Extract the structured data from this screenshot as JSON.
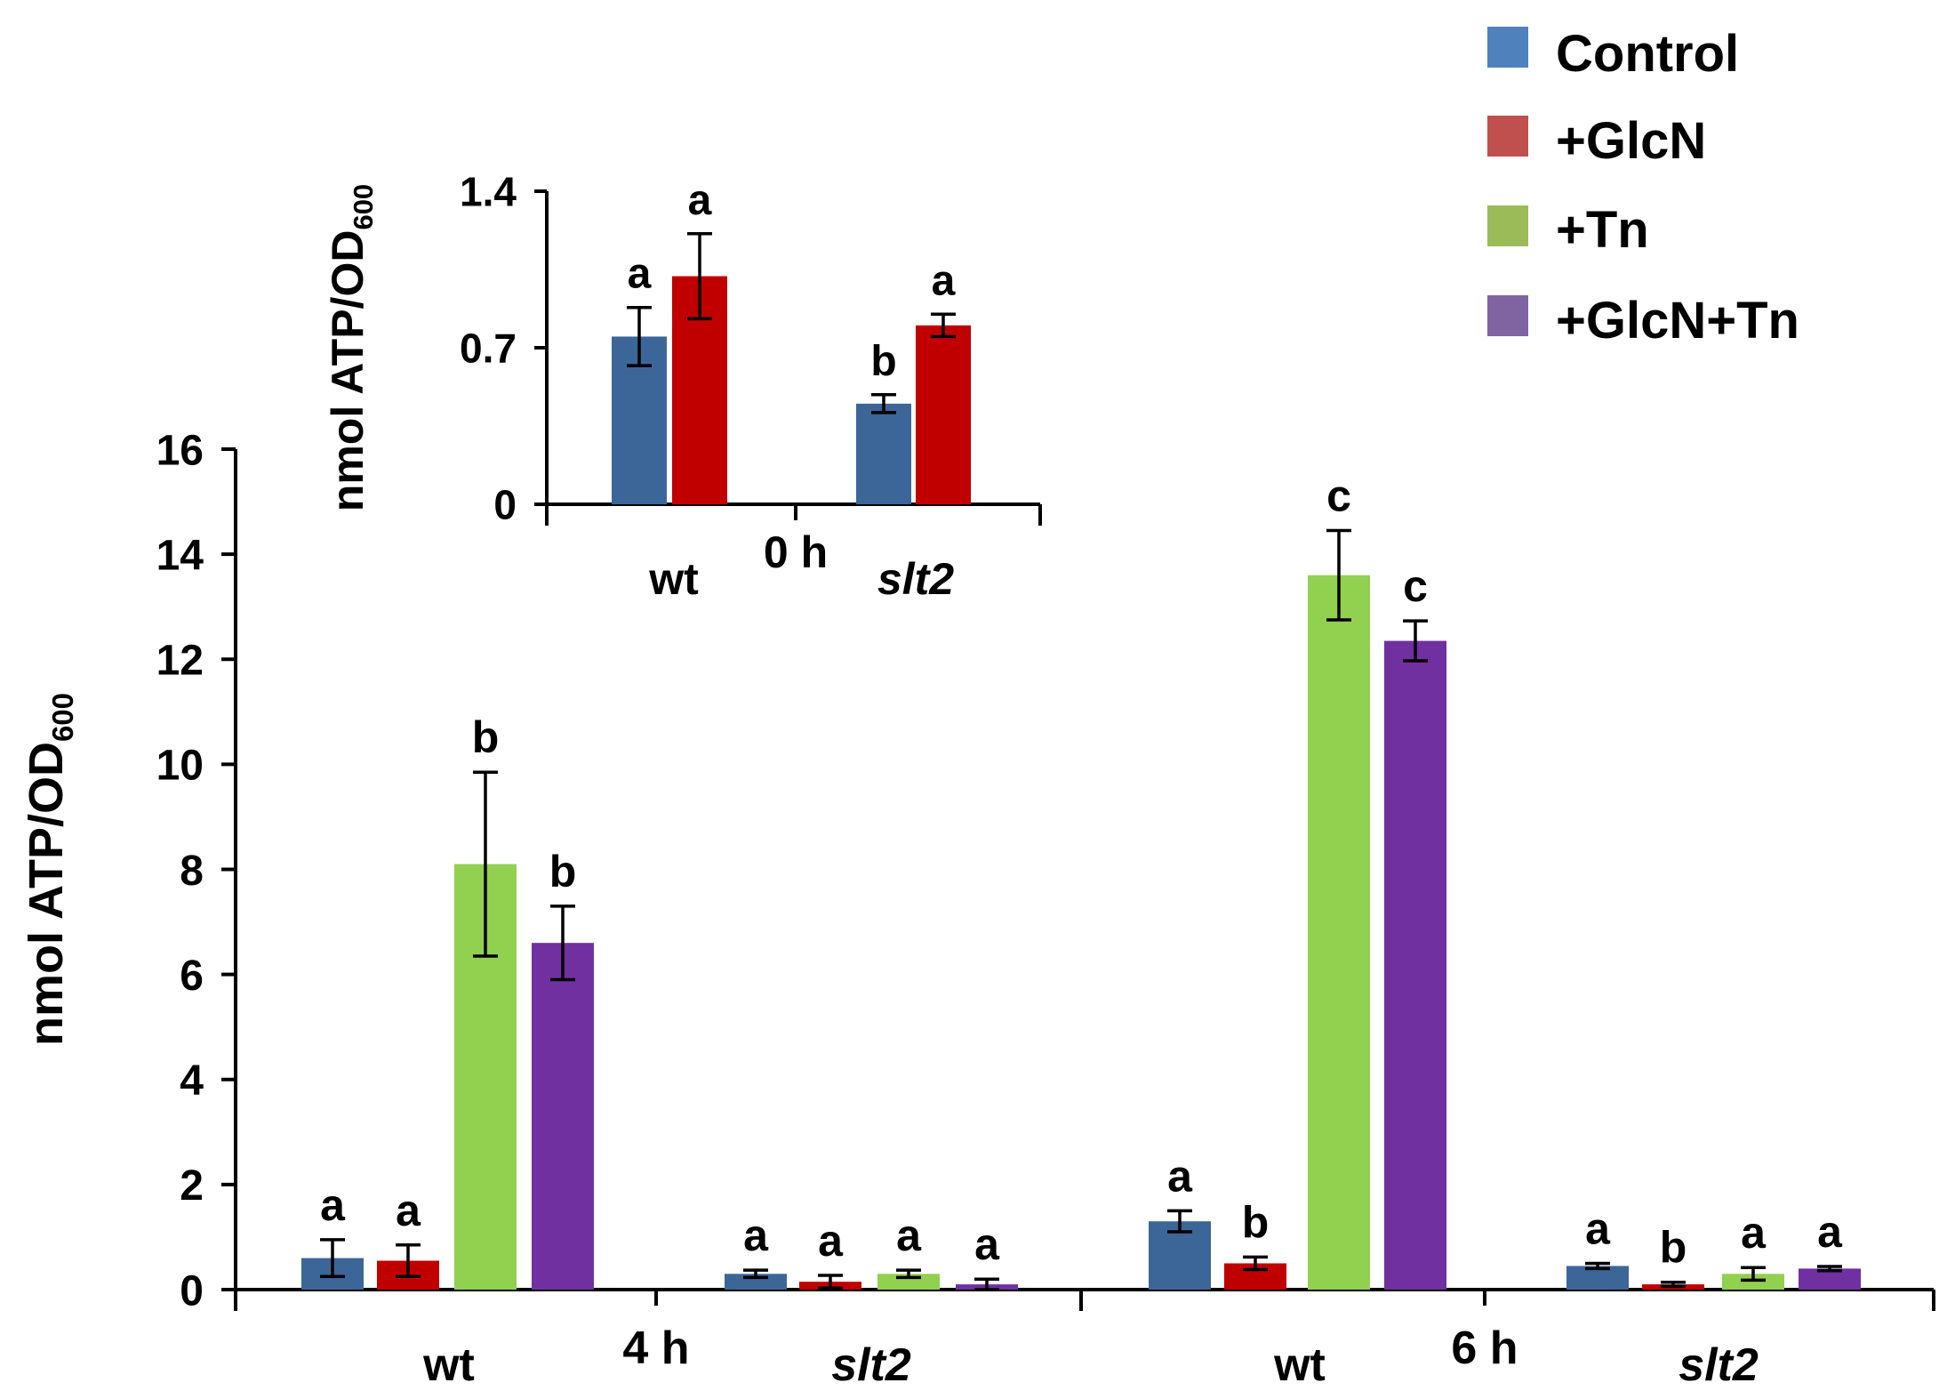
{
  "legend": {
    "items": [
      {
        "label": "Control",
        "color": "#4f81bd"
      },
      {
        "label": "+GlcN",
        "color": "#c0504d"
      },
      {
        "label": "+Tn",
        "color": "#9bbb59"
      },
      {
        "label": "+GlcN+Tn",
        "color": "#8064a2"
      }
    ]
  },
  "chart_data": [
    {
      "id": "main",
      "type": "bar",
      "ylabel_main": "nmol ATP/OD",
      "ylabel_sub": "600",
      "ylim": [
        0,
        16
      ],
      "yticks": [
        "0",
        "2",
        "4",
        "6",
        "8",
        "10",
        "12",
        "14",
        "16"
      ],
      "ytick_values": [
        0,
        2,
        4,
        6,
        8,
        10,
        12,
        14,
        16
      ],
      "groups": [
        {
          "label": "wt",
          "italic": false,
          "time": "4 h"
        },
        {
          "label": "slt2",
          "italic": true,
          "time": ""
        },
        {
          "label": "wt",
          "italic": false,
          "time": "6 h"
        },
        {
          "label": "slt2",
          "italic": true,
          "time": ""
        }
      ],
      "series": [
        {
          "name": "Control",
          "color": "#3c6698",
          "values": [
            0.6,
            0.3,
            1.3,
            0.45
          ],
          "errors": [
            0.35,
            0.07,
            0.2,
            0.05
          ],
          "letters": [
            "a",
            "a",
            "a",
            "a"
          ]
        },
        {
          "name": "+GlcN",
          "color": "#c00000",
          "values": [
            0.55,
            0.15,
            0.5,
            0.1
          ],
          "errors": [
            0.3,
            0.12,
            0.12,
            0.04
          ],
          "letters": [
            "a",
            "a",
            "b",
            "b"
          ]
        },
        {
          "name": "+Tn",
          "color": "#92d050",
          "values": [
            8.1,
            0.3,
            13.6,
            0.3
          ],
          "errors": [
            1.75,
            0.07,
            0.85,
            0.12
          ],
          "letters": [
            "b",
            "a",
            "c",
            "a"
          ]
        },
        {
          "name": "+GlcN+Tn",
          "color": "#7030a0",
          "values": [
            6.6,
            0.1,
            12.35,
            0.4
          ],
          "errors": [
            0.7,
            0.1,
            0.38,
            0.04
          ],
          "letters": [
            "b",
            "a",
            "c",
            "a"
          ]
        }
      ]
    },
    {
      "id": "inset",
      "type": "bar",
      "ylabel_main": "nmol ATP/OD",
      "ylabel_sub": "600",
      "ylim": [
        0,
        1.4
      ],
      "yticks": [
        "0",
        "0.7",
        "1.4"
      ],
      "ytick_values": [
        0,
        0.7,
        1.4
      ],
      "groups": [
        {
          "label": "wt",
          "italic": false,
          "time": "0 h"
        },
        {
          "label": "slt2",
          "italic": true,
          "time": ""
        }
      ],
      "series": [
        {
          "name": "Control",
          "color": "#3c6698",
          "values": [
            0.75,
            0.45
          ],
          "errors": [
            0.13,
            0.04
          ],
          "letters": [
            "a",
            "b"
          ]
        },
        {
          "name": "+GlcN",
          "color": "#c00000",
          "values": [
            1.02,
            0.8
          ],
          "errors": [
            0.19,
            0.05
          ],
          "letters": [
            "a",
            "a"
          ]
        }
      ]
    }
  ]
}
